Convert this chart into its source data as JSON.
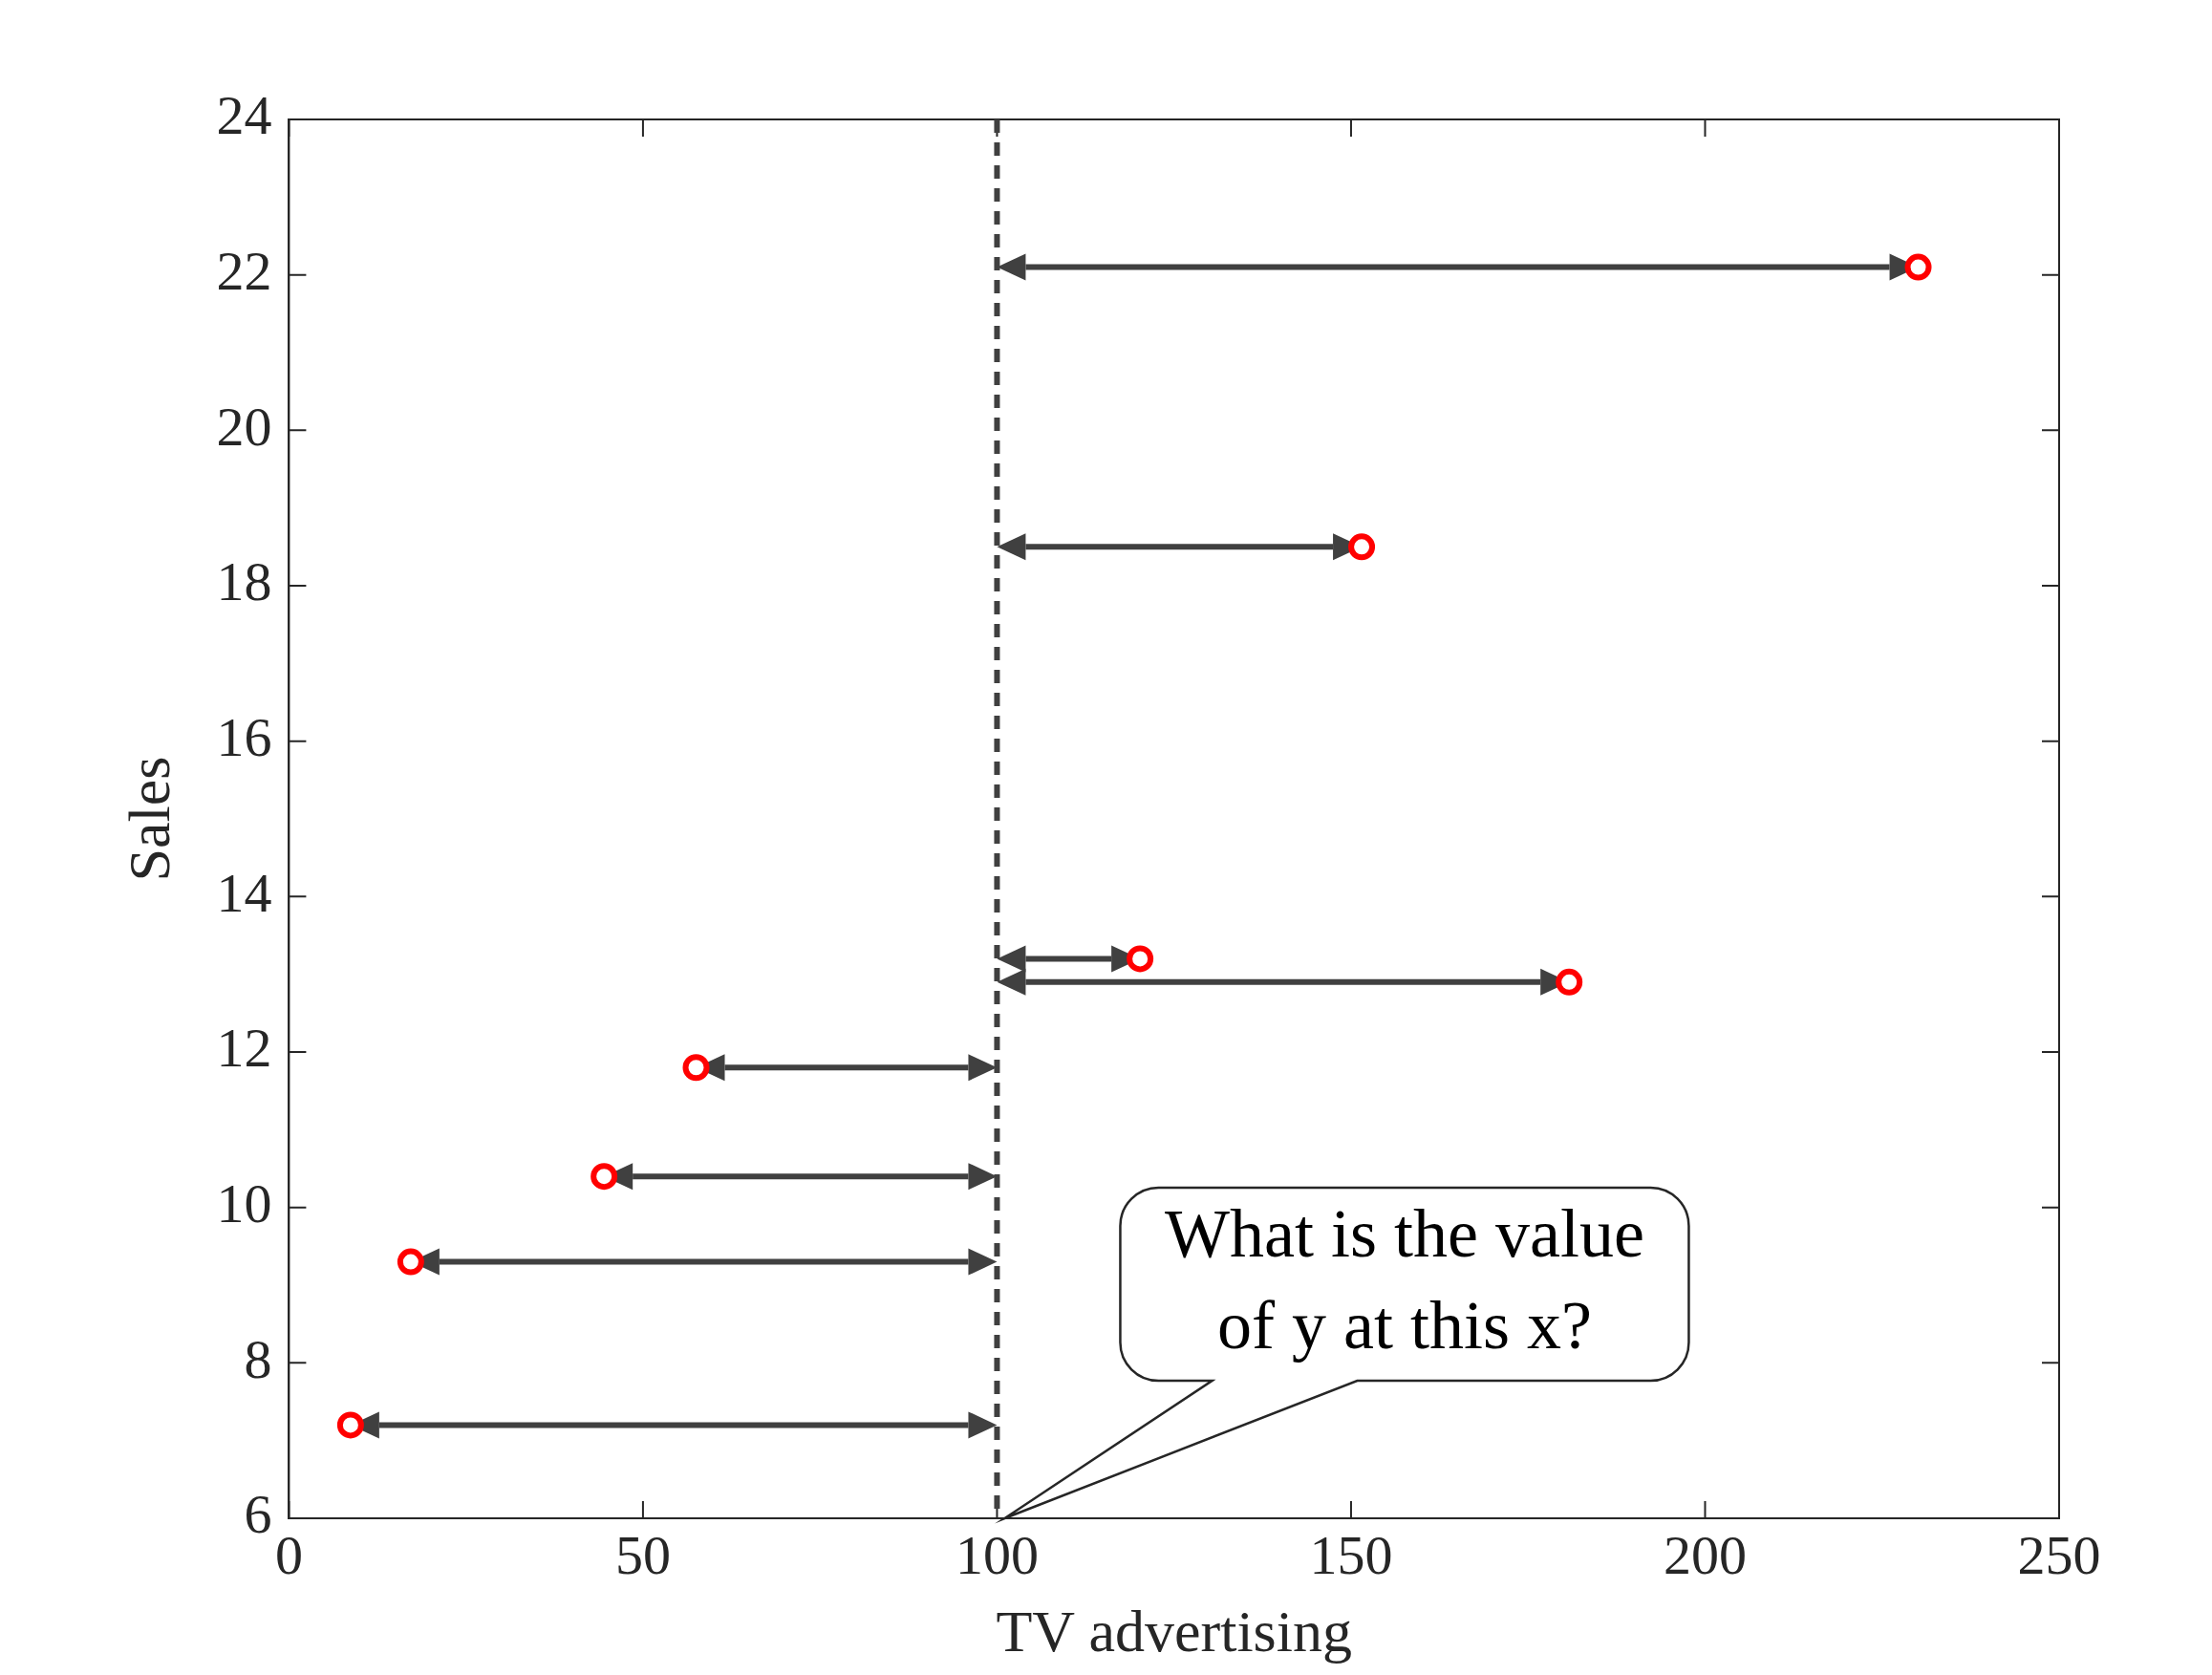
{
  "chart_data": {
    "type": "scatter",
    "xlabel": "TV advertising",
    "ylabel": "Sales",
    "x": [
      230.1,
      151.5,
      120.2,
      180.8,
      57.5,
      44.5,
      17.2,
      8.7
    ],
    "values": [
      22.1,
      18.5,
      13.2,
      12.9,
      11.8,
      10.4,
      9.3,
      7.2
    ],
    "color": "#ff0000",
    "marker": "circle",
    "xlim": [
      0,
      250
    ],
    "xticks": [
      0,
      50,
      100,
      150,
      200,
      250
    ],
    "ylim": [
      6,
      24
    ],
    "yticks": [
      6,
      8,
      10,
      12,
      14,
      16,
      18,
      20,
      22,
      24
    ],
    "ref_lines": [
      {
        "axis": "x",
        "value": 100,
        "color": "#404040",
        "line_style": "dashed"
      }
    ],
    "annotations": [
      "What is the value of y at this x?"
    ]
  }
}
